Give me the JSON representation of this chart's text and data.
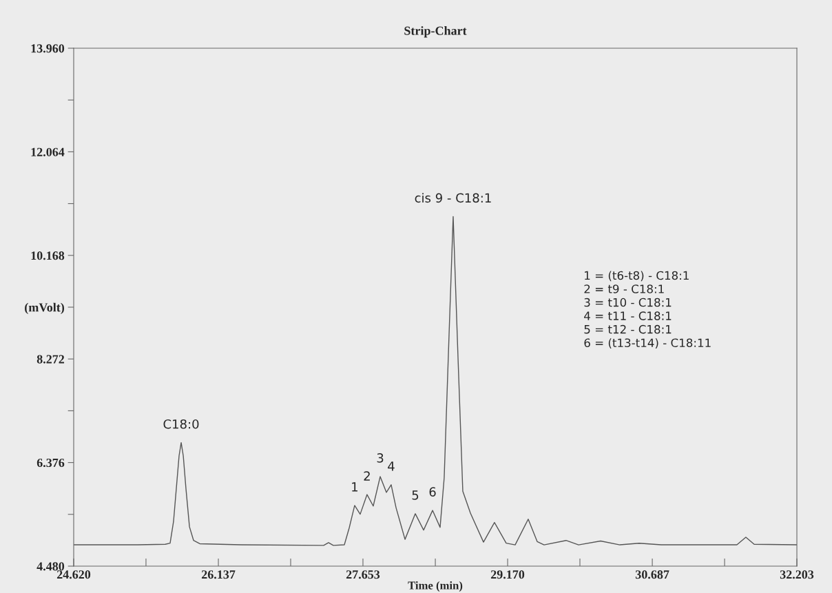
{
  "chart_data": {
    "type": "line",
    "title": "Strip-Chart",
    "xlabel": "Time (min)",
    "xlim": [
      24.62,
      32.203
    ],
    "xticks": [
      {
        "value": 24.62,
        "label": "24.620"
      },
      {
        "value": 25.378,
        "label": null
      },
      {
        "value": 26.137,
        "label": "26.137"
      },
      {
        "value": 26.895,
        "label": null
      },
      {
        "value": 27.653,
        "label": "27.653"
      },
      {
        "value": 28.412,
        "label": null
      },
      {
        "value": 29.17,
        "label": "29.170"
      },
      {
        "value": 29.928,
        "label": null
      },
      {
        "value": 30.687,
        "label": "30.687"
      },
      {
        "value": 31.445,
        "label": null
      },
      {
        "value": 32.203,
        "label": "32.203"
      }
    ],
    "ylim": [
      4.48,
      13.96
    ],
    "yticks": [
      {
        "value": 4.48,
        "label": "4.480"
      },
      {
        "value": 5.428,
        "label": null
      },
      {
        "value": 6.376,
        "label": "6.376"
      },
      {
        "value": 7.324,
        "label": null
      },
      {
        "value": 8.272,
        "label": "8.272"
      },
      {
        "value": 9.22,
        "label": "(mVolt)"
      },
      {
        "value": 10.168,
        "label": "10.168"
      },
      {
        "value": 11.116,
        "label": null
      },
      {
        "value": 12.064,
        "label": "12.064"
      },
      {
        "value": 13.012,
        "label": null
      },
      {
        "value": 13.96,
        "label": "13.960"
      }
    ],
    "grid": false,
    "legend": false,
    "series": [
      {
        "color": "#555555",
        "x": [
          24.62,
          25.292,
          25.58,
          25.631,
          25.667,
          25.696,
          25.725,
          25.747,
          25.769,
          25.797,
          25.834,
          25.877,
          25.942,
          26.375,
          27.241,
          27.292,
          27.342,
          27.458,
          27.509,
          27.566,
          27.624,
          27.696,
          27.761,
          27.834,
          27.899,
          27.949,
          28.0,
          28.094,
          28.202,
          28.289,
          28.383,
          28.462,
          28.505,
          28.556,
          28.599,
          28.65,
          28.7,
          28.78,
          28.917,
          29.032,
          29.155,
          29.249,
          29.386,
          29.48,
          29.552,
          29.783,
          29.914,
          30.145,
          30.347,
          30.549,
          30.78,
          31.574,
          31.668,
          31.755,
          32.203
        ],
        "values": [
          4.87,
          4.87,
          4.88,
          4.9,
          5.3,
          5.9,
          6.5,
          6.74,
          6.5,
          5.9,
          5.2,
          4.95,
          4.89,
          4.87,
          4.86,
          4.91,
          4.86,
          4.87,
          5.18,
          5.59,
          5.43,
          5.79,
          5.58,
          6.12,
          5.83,
          5.97,
          5.55,
          4.97,
          5.44,
          5.14,
          5.5,
          5.19,
          6.1,
          8.72,
          10.88,
          8.29,
          5.85,
          5.45,
          4.92,
          5.28,
          4.9,
          4.87,
          5.34,
          4.93,
          4.87,
          4.95,
          4.87,
          4.94,
          4.87,
          4.9,
          4.87,
          4.87,
          5.01,
          4.88,
          4.87
        ]
      }
    ],
    "annotations": [
      {
        "text": "C18:0",
        "x": 25.747,
        "y": 6.74
      },
      {
        "text": "1",
        "x": 27.566,
        "y": 5.59
      },
      {
        "text": "2",
        "x": 27.696,
        "y": 5.79
      },
      {
        "text": "3",
        "x": 27.834,
        "y": 6.12
      },
      {
        "text": "4",
        "x": 27.949,
        "y": 5.97
      },
      {
        "text": "5",
        "x": 28.202,
        "y": 5.44
      },
      {
        "text": "6",
        "x": 28.383,
        "y": 5.5
      },
      {
        "text": "cis 9 - C18:1",
        "x": 28.599,
        "y": 10.88
      },
      "1 = (t6-t8) - C18:1",
      "2 = t9 - C18:1",
      "3 = t10 - C18:1",
      "4 = t11 - C18:1",
      "5 = t12 - C18:1",
      "6 = (t13-t14) - C18:11"
    ]
  }
}
